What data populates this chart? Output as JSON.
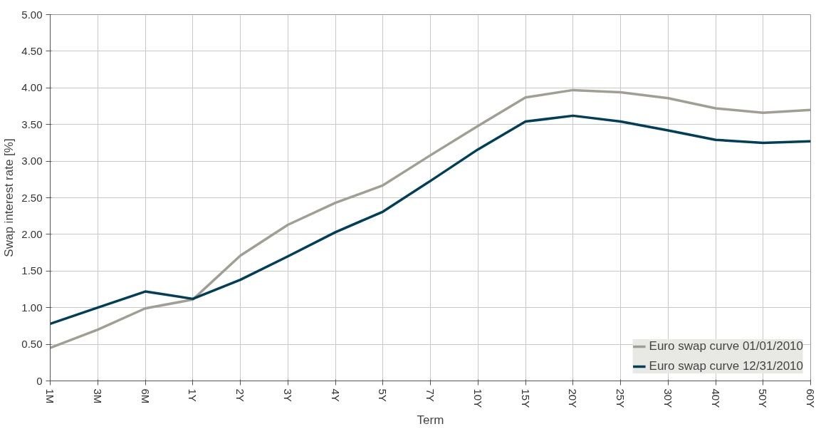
{
  "chart_data": {
    "type": "line",
    "xlabel": "Term",
    "ylabel": "Swap interest rate [%]",
    "categories": [
      "1M",
      "3M",
      "6M",
      "1Y",
      "2Y",
      "3Y",
      "4Y",
      "5Y",
      "7Y",
      "10Y",
      "15Y",
      "20Y",
      "25Y",
      "30Y",
      "40Y",
      "50Y",
      "60Y"
    ],
    "series": [
      {
        "name": "Euro swap curve 01/01/2010",
        "color": "#a19e94",
        "values": [
          0.45,
          0.7,
          0.99,
          1.11,
          1.71,
          2.13,
          2.43,
          2.67,
          3.08,
          3.48,
          3.87,
          3.97,
          3.94,
          3.86,
          3.72,
          3.66,
          3.7
        ]
      },
      {
        "name": "Euro swap curve 12/31/2010",
        "color": "#003f5a",
        "values": [
          0.78,
          1.0,
          1.22,
          1.12,
          1.38,
          1.7,
          2.03,
          2.31,
          2.73,
          3.16,
          3.54,
          3.62,
          3.54,
          3.42,
          3.29,
          3.25,
          3.27
        ]
      }
    ],
    "ylim": [
      0,
      5
    ],
    "yticks": [
      {
        "value": 0,
        "label": "0"
      },
      {
        "value": 0.5,
        "label": "0.50"
      },
      {
        "value": 1,
        "label": "1.00"
      },
      {
        "value": 1.5,
        "label": "1.50"
      },
      {
        "value": 2,
        "label": "2.00"
      },
      {
        "value": 2.5,
        "label": "2.50"
      },
      {
        "value": 3,
        "label": "3.00"
      },
      {
        "value": 3.5,
        "label": "3.50"
      },
      {
        "value": 4,
        "label": "4.00"
      },
      {
        "value": 4.5,
        "label": "4.50"
      },
      {
        "value": 5,
        "label": "5.00"
      }
    ],
    "grid": true,
    "legend": "bottom right",
    "marker": "none",
    "line_style": "solid"
  }
}
